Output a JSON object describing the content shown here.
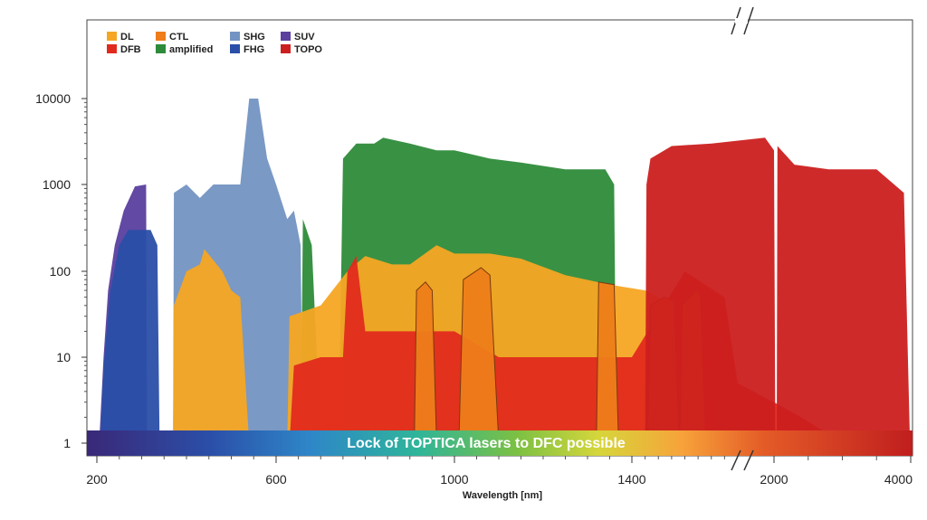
{
  "chart_data": {
    "type": "area",
    "title": "",
    "xlabel": "Wavelength [nm]",
    "ylabel": "",
    "x_scale": "broken-linear",
    "y_scale": "log",
    "ylim": [
      0.6,
      60000
    ],
    "x_ticks": [
      {
        "value": 200,
        "label": "200"
      },
      {
        "value": 600,
        "label": "600"
      },
      {
        "value": 1000,
        "label": "1000"
      },
      {
        "value": 1400,
        "label": "1400"
      },
      {
        "value": 2000,
        "label": "2000"
      },
      {
        "value": 4000,
        "label": "4000"
      }
    ],
    "y_ticks": [
      {
        "value": 1,
        "label": "1"
      },
      {
        "value": 10,
        "label": "10"
      },
      {
        "value": 100,
        "label": "100"
      },
      {
        "value": 1000,
        "label": "1000"
      },
      {
        "value": 10000,
        "label": "10000"
      }
    ],
    "legend_position": "top-left",
    "legend": [
      {
        "name": "DL",
        "color": "#f5a623"
      },
      {
        "name": "DFB",
        "color": "#e12a1e"
      },
      {
        "name": "CTL",
        "color": "#ee7d1a"
      },
      {
        "name": "amplified",
        "color": "#2e8b3a"
      },
      {
        "name": "SHG",
        "color": "#7393c2"
      },
      {
        "name": "FHG",
        "color": "#2a4fa8"
      },
      {
        "name": "SUV",
        "color": "#5a3f9e"
      },
      {
        "name": "TOPO",
        "color": "#cc1f1f"
      }
    ],
    "annotation": "Lock of TOPTICA lasers to DFC possible",
    "series": [
      {
        "name": "SUV",
        "color": "#5a3f9e",
        "points": [
          [
            205,
            1
          ],
          [
            215,
            10
          ],
          [
            225,
            60
          ],
          [
            240,
            200
          ],
          [
            260,
            500
          ],
          [
            285,
            950
          ],
          [
            310,
            1000
          ],
          [
            312,
            1
          ]
        ]
      },
      {
        "name": "FHG",
        "color": "#2a4fa8",
        "points": [
          [
            207,
            1
          ],
          [
            215,
            8
          ],
          [
            230,
            60
          ],
          [
            250,
            200
          ],
          [
            270,
            300
          ],
          [
            300,
            300
          ],
          [
            320,
            300
          ],
          [
            335,
            200
          ],
          [
            340,
            1
          ]
        ]
      },
      {
        "name": "SHG",
        "color": "#7393c2",
        "points": [
          [
            370,
            1
          ],
          [
            372,
            800
          ],
          [
            400,
            1000
          ],
          [
            430,
            700
          ],
          [
            460,
            1000
          ],
          [
            520,
            1000
          ],
          [
            540,
            10000
          ],
          [
            560,
            10000
          ],
          [
            580,
            2000
          ],
          [
            600,
            1000
          ],
          [
            625,
            400
          ],
          [
            640,
            500
          ],
          [
            655,
            200
          ],
          [
            660,
            1
          ]
        ]
      },
      {
        "name": "amplified",
        "color": "#2e8b3a",
        "points": [
          [
            655,
            1
          ],
          [
            660,
            400
          ],
          [
            680,
            200
          ],
          [
            700,
            1
          ],
          [
            740,
            1
          ],
          [
            750,
            2000
          ],
          [
            780,
            3000
          ],
          [
            820,
            3000
          ],
          [
            840,
            3500
          ],
          [
            900,
            3000
          ],
          [
            960,
            2500
          ],
          [
            1000,
            2500
          ],
          [
            1080,
            2000
          ],
          [
            1150,
            1800
          ],
          [
            1250,
            1500
          ],
          [
            1340,
            1500
          ],
          [
            1360,
            1000
          ],
          [
            1365,
            1
          ]
        ]
      },
      {
        "name": "DL",
        "color": "#f5a623",
        "points": [
          [
            370,
            1
          ],
          [
            372,
            40
          ],
          [
            400,
            100
          ],
          [
            430,
            120
          ],
          [
            440,
            180
          ],
          [
            480,
            100
          ],
          [
            500,
            60
          ],
          [
            520,
            50
          ],
          [
            540,
            1
          ],
          [
            625,
            1
          ],
          [
            630,
            30
          ],
          [
            700,
            40
          ],
          [
            760,
            100
          ],
          [
            800,
            150
          ],
          [
            860,
            120
          ],
          [
            900,
            120
          ],
          [
            960,
            200
          ],
          [
            1000,
            160
          ],
          [
            1080,
            160
          ],
          [
            1150,
            140
          ],
          [
            1250,
            90
          ],
          [
            1350,
            70
          ],
          [
            1450,
            60
          ],
          [
            1500,
            50
          ],
          [
            1620,
            30
          ],
          [
            1680,
            10
          ],
          [
            1700,
            1
          ]
        ]
      },
      {
        "name": "DFB",
        "color": "#e12a1e",
        "points": [
          [
            630,
            1
          ],
          [
            640,
            8
          ],
          [
            700,
            10
          ],
          [
            750,
            10
          ],
          [
            760,
            100
          ],
          [
            780,
            150
          ],
          [
            800,
            20
          ],
          [
            900,
            20
          ],
          [
            1000,
            20
          ],
          [
            1100,
            10
          ],
          [
            1200,
            10
          ],
          [
            1300,
            10
          ],
          [
            1400,
            10
          ],
          [
            1600,
            100
          ],
          [
            1750,
            50
          ],
          [
            1800,
            5
          ],
          [
            2000,
            3
          ],
          [
            2400,
            2
          ],
          [
            3000,
            1
          ]
        ]
      },
      {
        "name": "CTL",
        "color": "#ee7d1a",
        "points": [
          [
            910,
            1
          ],
          [
            915,
            60
          ],
          [
            935,
            75
          ],
          [
            950,
            60
          ],
          [
            960,
            1
          ],
          [
            1010,
            1
          ],
          [
            1020,
            80
          ],
          [
            1060,
            110
          ],
          [
            1080,
            90
          ],
          [
            1100,
            1
          ],
          [
            1320,
            1
          ],
          [
            1325,
            75
          ],
          [
            1360,
            70
          ],
          [
            1370,
            1
          ],
          [
            1460,
            1
          ],
          [
            1470,
            40
          ],
          [
            1520,
            50
          ],
          [
            1560,
            45
          ],
          [
            1580,
            1
          ],
          [
            1590,
            40
          ],
          [
            1640,
            60
          ],
          [
            1660,
            55
          ],
          [
            1680,
            1
          ]
        ]
      },
      {
        "name": "TOPO",
        "color": "#cc1f1f",
        "points": [
          [
            1450,
            1
          ],
          [
            1455,
            1000
          ],
          [
            1470,
            2000
          ],
          [
            1550,
            2800
          ],
          [
            1700,
            3000
          ],
          [
            1950,
            3500
          ],
          [
            2000,
            2500
          ],
          [
            2020,
            1
          ],
          [
            2040,
            1
          ],
          [
            2050,
            2800
          ],
          [
            2300,
            1700
          ],
          [
            2800,
            1500
          ],
          [
            3500,
            1500
          ],
          [
            3900,
            800
          ],
          [
            3990,
            1
          ]
        ]
      }
    ]
  }
}
